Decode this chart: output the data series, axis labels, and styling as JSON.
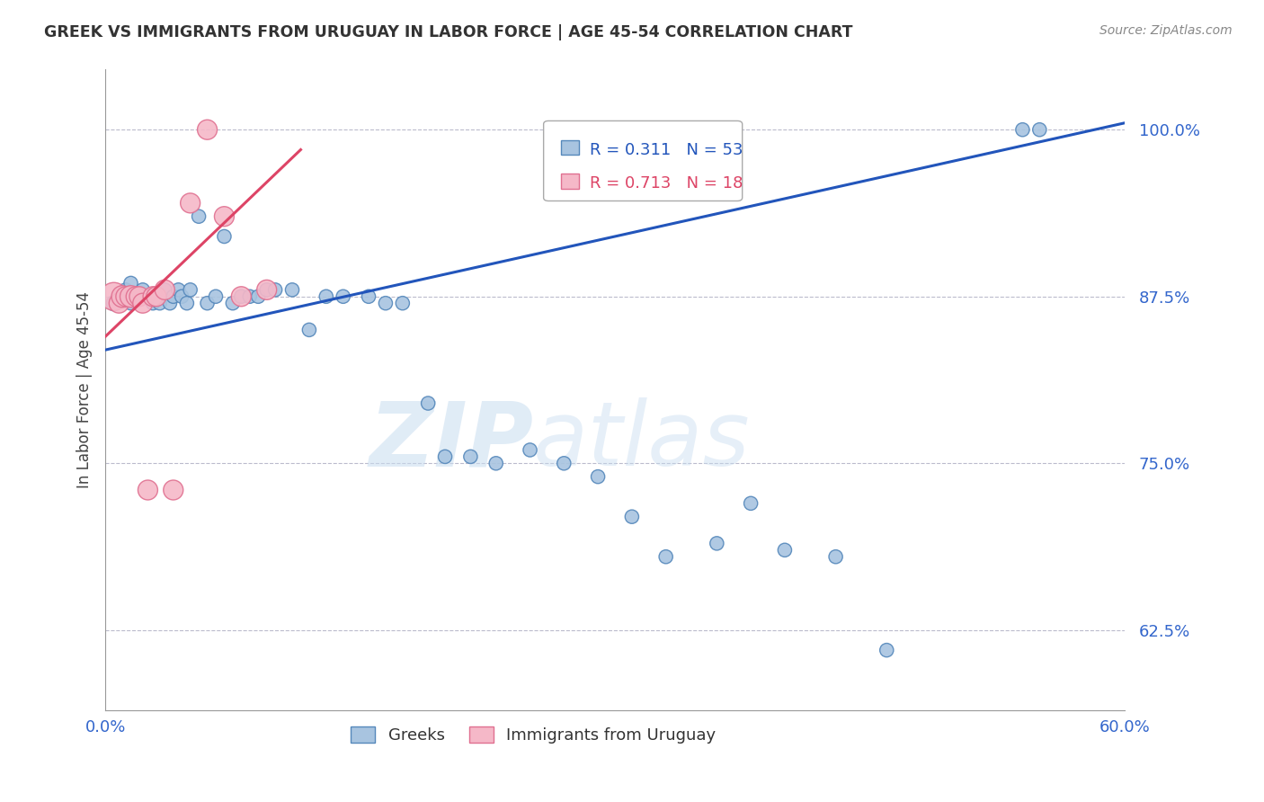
{
  "title": "GREEK VS IMMIGRANTS FROM URUGUAY IN LABOR FORCE | AGE 45-54 CORRELATION CHART",
  "source": "Source: ZipAtlas.com",
  "ylabel": "In Labor Force | Age 45-54",
  "xmin": 0.0,
  "xmax": 0.6,
  "ymin": 0.565,
  "ymax": 1.045,
  "yticks": [
    0.625,
    0.75,
    0.875,
    1.0
  ],
  "ytick_labels": [
    "62.5%",
    "75.0%",
    "87.5%",
    "100.0%"
  ],
  "xticks": [
    0.0,
    0.1,
    0.2,
    0.3,
    0.4,
    0.5,
    0.6
  ],
  "xtick_labels": [
    "0.0%",
    "",
    "",
    "",
    "",
    "",
    "60.0%"
  ],
  "blue_color": "#a8c4e0",
  "blue_edge_color": "#5588bb",
  "pink_color": "#f5b8c8",
  "pink_edge_color": "#e07090",
  "trend_blue": "#2255bb",
  "trend_pink": "#dd4466",
  "legend_R_blue": "0.311",
  "legend_N_blue": "53",
  "legend_R_pink": "0.713",
  "legend_N_pink": "18",
  "legend_label_blue": "Greeks",
  "legend_label_pink": "Immigrants from Uruguay",
  "blue_x": [
    0.005,
    0.008,
    0.01,
    0.012,
    0.015,
    0.015,
    0.018,
    0.02,
    0.022,
    0.025,
    0.028,
    0.03,
    0.032,
    0.035,
    0.038,
    0.04,
    0.043,
    0.045,
    0.048,
    0.05,
    0.055,
    0.06,
    0.065,
    0.07,
    0.075,
    0.08,
    0.085,
    0.09,
    0.095,
    0.1,
    0.11,
    0.12,
    0.13,
    0.14,
    0.155,
    0.165,
    0.175,
    0.19,
    0.2,
    0.215,
    0.23,
    0.25,
    0.27,
    0.29,
    0.31,
    0.33,
    0.36,
    0.38,
    0.4,
    0.43,
    0.46,
    0.54,
    0.55
  ],
  "blue_y": [
    0.87,
    0.875,
    0.875,
    0.88,
    0.87,
    0.885,
    0.875,
    0.875,
    0.88,
    0.875,
    0.87,
    0.875,
    0.87,
    0.88,
    0.87,
    0.875,
    0.88,
    0.875,
    0.87,
    0.88,
    0.935,
    0.87,
    0.875,
    0.92,
    0.87,
    0.875,
    0.875,
    0.875,
    0.88,
    0.88,
    0.88,
    0.85,
    0.875,
    0.875,
    0.875,
    0.87,
    0.87,
    0.795,
    0.755,
    0.755,
    0.75,
    0.76,
    0.75,
    0.74,
    0.71,
    0.68,
    0.69,
    0.72,
    0.685,
    0.68,
    0.61,
    1.0,
    1.0
  ],
  "blue_sizes": [
    150,
    120,
    120,
    120,
    120,
    120,
    120,
    120,
    120,
    120,
    120,
    200,
    120,
    120,
    120,
    120,
    120,
    120,
    120,
    120,
    120,
    120,
    120,
    120,
    120,
    120,
    120,
    120,
    120,
    120,
    120,
    120,
    120,
    120,
    120,
    120,
    120,
    120,
    120,
    120,
    120,
    120,
    120,
    120,
    120,
    120,
    120,
    120,
    120,
    120,
    120,
    120,
    120
  ],
  "pink_x": [
    0.005,
    0.008,
    0.01,
    0.012,
    0.015,
    0.018,
    0.02,
    0.022,
    0.025,
    0.028,
    0.03,
    0.035,
    0.04,
    0.05,
    0.06,
    0.07,
    0.08,
    0.095
  ],
  "pink_y": [
    0.875,
    0.87,
    0.875,
    0.875,
    0.875,
    0.875,
    0.875,
    0.87,
    0.73,
    0.875,
    0.875,
    0.88,
    0.73,
    0.945,
    1.0,
    0.935,
    0.875,
    0.88
  ],
  "pink_sizes": [
    500,
    250,
    300,
    250,
    300,
    250,
    250,
    250,
    250,
    250,
    250,
    250,
    250,
    250,
    250,
    250,
    250,
    250
  ],
  "trend_blue_x0": 0.0,
  "trend_blue_x1": 0.6,
  "trend_blue_y0": 0.835,
  "trend_blue_y1": 1.005,
  "trend_pink_x0": 0.0,
  "trend_pink_x1": 0.115,
  "trend_pink_y0": 0.845,
  "trend_pink_y1": 0.985,
  "watermark_text": "ZIP",
  "watermark_text2": "atlas",
  "axis_color": "#3366cc",
  "title_color": "#333333",
  "grid_color": "#bbbbcc"
}
